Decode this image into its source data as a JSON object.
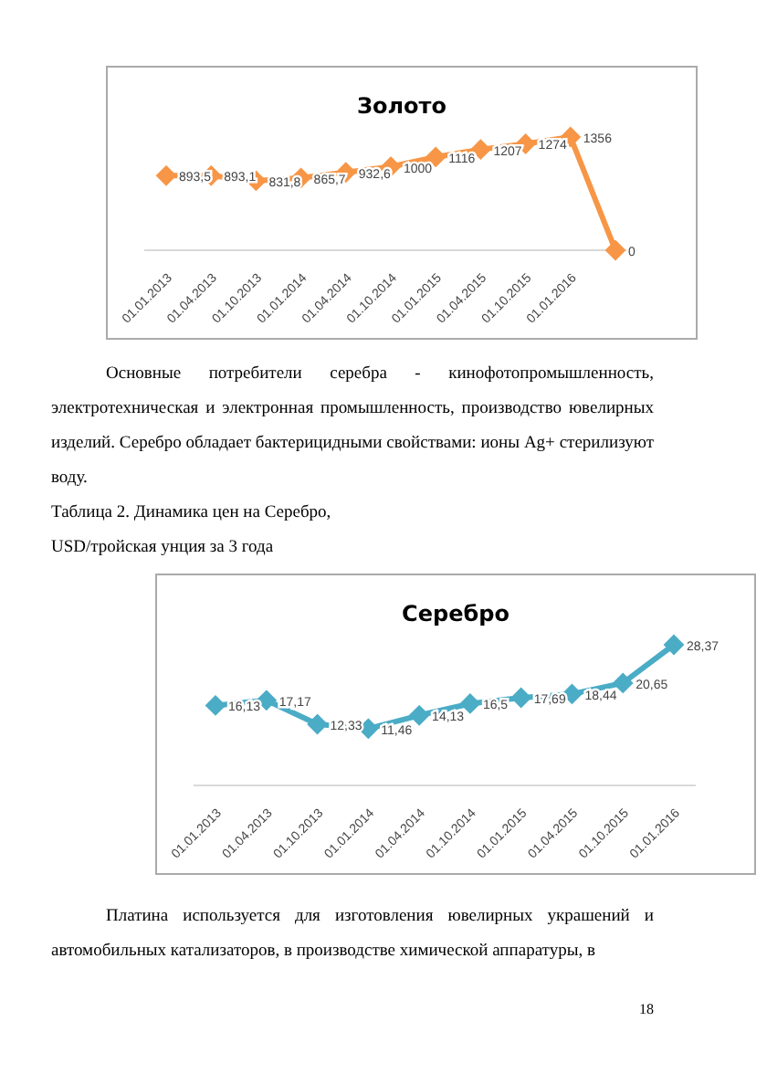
{
  "chart_data": [
    {
      "type": "line",
      "title": "Золото",
      "categories": [
        "01.01.2013",
        "01.04.2013",
        "01.10.2013",
        "01.01.2014",
        "01.04.2014",
        "01.10.2014",
        "01.01.2015",
        "01.04.2015",
        "01.10.2015",
        "01.01.2016",
        null
      ],
      "series": [
        {
          "color": "#f79646",
          "values": [
            893.5,
            893.1,
            831.8,
            865.7,
            932.6,
            1000,
            1116,
            1207,
            1274,
            1356,
            0
          ],
          "value_labels": [
            "893,5",
            "893,1",
            "831,8",
            "865,7",
            "932,6",
            "1000",
            "1116",
            "1207",
            "1274",
            "1356",
            "0"
          ]
        }
      ],
      "marker": "diamond",
      "grid": false,
      "legend": false,
      "annotations": [
        "Основные потребители серебра - кинофотопромышленность, электротехническая и электронная промышленность, производство ювелирных изделий. Серебро обладает бактерицидными свойствами: ионы Ag+ стерилизуют воду.",
        "Таблица 2. Динамика цен на Серебро,",
        "USD/тройская унция за 3 года"
      ]
    },
    {
      "type": "line",
      "title": "Серебро",
      "categories": [
        "01.01.2013",
        "01.04.2013",
        "01.10.2013",
        "01.01.2014",
        "01.04.2014",
        "01.10.2014",
        "01.01.2015",
        "01.04.2015",
        "01.10.2015",
        "01.01.2016"
      ],
      "series": [
        {
          "color": "#4bacc6",
          "values": [
            16.13,
            17.17,
            12.33,
            11.46,
            14.13,
            16.5,
            17.69,
            18.44,
            20.65,
            28.37
          ],
          "value_labels": [
            "16,13",
            "17,17",
            "12,33",
            "11,46",
            "14,13",
            "16,5",
            "17,69",
            "18,44",
            "20,65",
            "28,37"
          ]
        }
      ],
      "marker": "diamond",
      "grid": false,
      "legend": false,
      "annotations": [
        "Платина используется для изготовления ювелирных украшений и автомобильных катализаторов, в производстве химической аппаратуры, в",
        "18"
      ]
    }
  ]
}
